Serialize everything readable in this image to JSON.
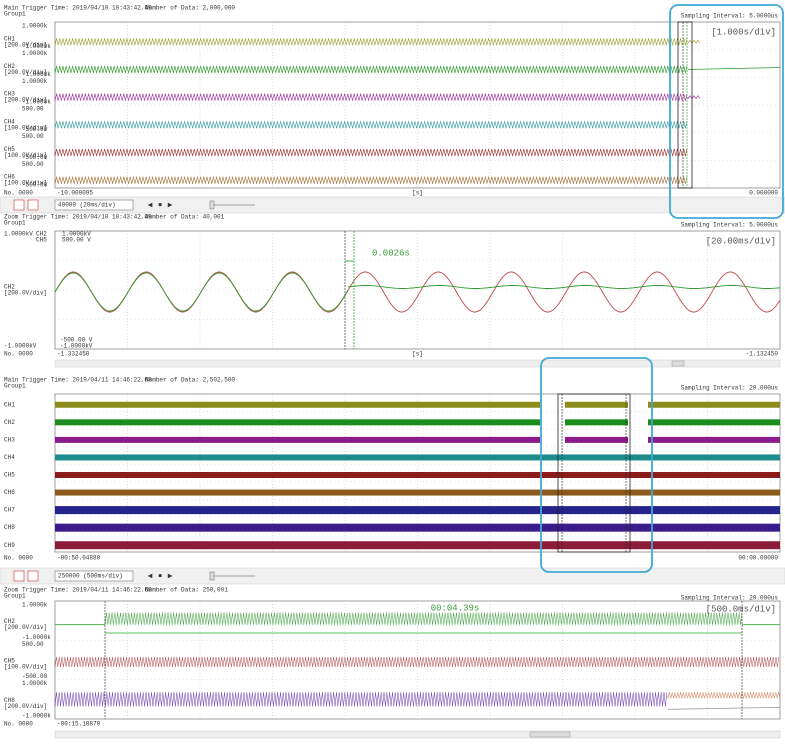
{
  "panels": [
    {
      "trigger": "Main Trigger Time: 2019/04/10 10:43:42.49",
      "data_count": "Number of Data: 2,000,000",
      "group": "Group1",
      "sampling": "Sampling Interval: 5.0000us",
      "div": "[1.000s/div]",
      "channels": [
        {
          "name": "CH1",
          "scale": "[200.0V/div]",
          "top": "1.0000k",
          "bottom": "-1.0000k",
          "color": "#9c9c2c"
        },
        {
          "name": "CH2",
          "scale": "[200.0V/div]",
          "top": "1.0000k",
          "bottom": "-1.0000k",
          "color": "#2f9a2f"
        },
        {
          "name": "CH3",
          "scale": "[200.0V/div]",
          "top": "1.0000k",
          "bottom": "-1.0000k",
          "color": "#a32fa3"
        },
        {
          "name": "CH4",
          "scale": "[100.0V/div]",
          "top": "500.00",
          "bottom": "-500.00",
          "color": "#2f9a9a"
        },
        {
          "name": "CH5",
          "scale": "[100.0V/div]",
          "top": "500.00",
          "bottom": "-500.00",
          "color": "#a33535"
        },
        {
          "name": "CH6",
          "scale": "[100.0V/div]",
          "top": "500.00",
          "bottom": "-500.00",
          "color": "#a8703a"
        }
      ],
      "x_start": "-10.000095",
      "x_unit": "[s]",
      "x_end": "0.000000",
      "number": "No. 0000"
    },
    {
      "trigger": "Zoom Trigger Time: 2019/04/10 10:43:42.49",
      "data_count": "Number of Data: 40,001",
      "group": "Group1",
      "sampling": "Sampling Interval: 5.0000us",
      "div": "[20.00ms/div]",
      "cursor": "0.0026s",
      "top": "1.0000kV",
      "legend": [
        "CH2",
        "CH5"
      ],
      "legend_scales": [
        "1.0000kV",
        "500.00 V"
      ],
      "channel": "CH2",
      "scale": "[200.0V/div]",
      "bottom_scales": [
        "-500.00 V",
        "-1.0000kV"
      ],
      "bottom": "-1.0000kV",
      "colors": [
        "#2f9a2f",
        "#c04848"
      ],
      "x_start": "-1.332450",
      "x_unit": "[s]",
      "x_end": "-1.132450",
      "number": "No. 0000"
    },
    {
      "trigger": "Main Trigger Time: 2019/04/11 14:46:22.68",
      "data_count": "Number of Data: 2,502,500",
      "group": "Group1",
      "sampling": "Sampling Interval: 20.000us",
      "channels": [
        {
          "name": "CH1",
          "color": "#8c8c1c"
        },
        {
          "name": "CH2",
          "color": "#1c8c1c"
        },
        {
          "name": "CH3",
          "color": "#8c1c8c"
        },
        {
          "name": "CH4",
          "color": "#1c8c8c"
        },
        {
          "name": "CH5",
          "color": "#8c1c1c"
        },
        {
          "name": "CH6",
          "color": "#8c5a1c"
        },
        {
          "name": "CH7",
          "color": "#24248c"
        },
        {
          "name": "CH8",
          "color": "#3a1c8c"
        },
        {
          "name": "CH9",
          "color": "#8c1c3a"
        }
      ],
      "x_start": "-00:50.04880",
      "x_end": "00:00.00000",
      "number": "No. 0000"
    },
    {
      "trigger": "Zoom Trigger Time: 2019/04/11 14:46:22.68",
      "data_count": "Number of Data: 250,001",
      "group": "Group1",
      "sampling": "Sampling Interval: 20.000us",
      "div": "[500.0ms/div]",
      "cursor": "00:04.39s",
      "channels": [
        {
          "name": "CH2",
          "scale": "[200.0V/div]",
          "top": "1.0000k",
          "bottom": "-1.0000k",
          "color": "#3aa03a"
        },
        {
          "name": "CH5",
          "scale": "[100.0V/div]",
          "top": "500.00",
          "bottom": "-500.00",
          "color": "#b04848"
        },
        {
          "name": "CH8",
          "scale": "[200.0V/div]",
          "top": "1.0000k",
          "bottom": "-1.0000k",
          "color": "#6a3ab0"
        }
      ],
      "x_start": "-00:15.18870",
      "number": "No. 0000"
    }
  ],
  "toolbars": [
    {
      "setting": "40000 (20ms/div)"
    },
    {
      "setting": "250000 (500ms/div)"
    }
  ]
}
